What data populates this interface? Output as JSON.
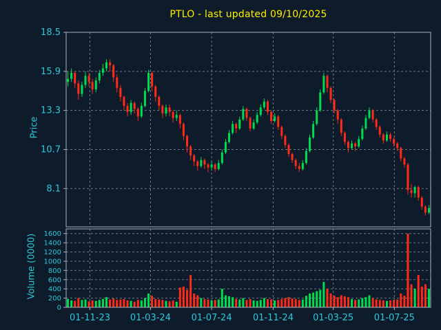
{
  "title": "PTLO - last updated 09/10/2025",
  "ticker": "PTLO",
  "last_updated": "09/10/2025",
  "colors": {
    "background": "#0d1b2b",
    "title_text": "#ffee00",
    "axis_text": "#2ec8d8",
    "grid": "#6d7b8a",
    "border": "#a8b4c0",
    "up": "#00dc50",
    "down": "#ff2a18"
  },
  "chart_data": {
    "type": "candlestick",
    "subchart": "volume-bars",
    "title": "PTLO - last updated 09/10/2025",
    "grid": true,
    "legend": "none",
    "price_axis": {
      "label": "Price",
      "ticks": [
        18.5,
        15.9,
        13.3,
        10.7,
        8.1
      ],
      "tick_labels": [
        "18.5",
        "15.9",
        "13.3",
        "10.7",
        "8.1"
      ],
      "range": [
        5.55,
        18.5
      ]
    },
    "volume_axis": {
      "label": "Volume (0000)",
      "ticks": [
        1600,
        1400,
        1200,
        1000,
        800,
        600,
        400,
        200,
        0
      ],
      "tick_labels": [
        "1600",
        "1400",
        "1200",
        "1000",
        "800",
        "600",
        "400",
        "200",
        "0"
      ],
      "range": [
        0,
        1700
      ]
    },
    "x": {
      "start_date": "2023-09-18",
      "interval_days": 7,
      "tick_labels": [
        "01-11-23",
        "01-03-24",
        "01-07-24",
        "01-11-24",
        "01-03-25",
        "01-07-25"
      ],
      "tick_dates": [
        "2023-11-01",
        "2024-03-01",
        "2024-07-01",
        "2024-11-01",
        "2025-03-01",
        "2025-07-01"
      ]
    },
    "ohlcv_fields": [
      "open",
      "high",
      "low",
      "close",
      "volume_0000"
    ],
    "candles": [
      [
        15.2,
        15.9,
        14.9,
        15.4,
        180
      ],
      [
        15.4,
        16.1,
        15.2,
        15.8,
        150
      ],
      [
        15.8,
        15.9,
        14.8,
        15.1,
        140
      ],
      [
        15.1,
        15.3,
        14.0,
        14.4,
        200
      ],
      [
        14.4,
        15.2,
        14.2,
        15.0,
        160
      ],
      [
        15.0,
        15.9,
        14.8,
        15.6,
        170
      ],
      [
        15.6,
        15.8,
        14.9,
        15.2,
        130
      ],
      [
        15.2,
        15.4,
        14.4,
        14.7,
        150
      ],
      [
        14.7,
        15.5,
        14.5,
        15.3,
        140
      ],
      [
        15.3,
        16.0,
        15.1,
        15.8,
        160
      ],
      [
        15.8,
        16.4,
        15.6,
        16.1,
        180
      ],
      [
        16.1,
        16.7,
        15.9,
        16.5,
        220
      ],
      [
        16.5,
        16.7,
        15.9,
        16.3,
        170
      ],
      [
        16.3,
        16.4,
        15.2,
        15.5,
        190
      ],
      [
        15.5,
        15.7,
        14.5,
        14.8,
        160
      ],
      [
        14.8,
        15.0,
        13.9,
        14.2,
        170
      ],
      [
        14.2,
        14.3,
        13.3,
        13.6,
        180
      ],
      [
        13.6,
        13.8,
        12.9,
        13.2,
        150
      ],
      [
        13.2,
        14.0,
        13.0,
        13.8,
        140
      ],
      [
        13.8,
        13.9,
        13.1,
        13.4,
        120
      ],
      [
        13.4,
        13.5,
        12.6,
        12.9,
        160
      ],
      [
        12.9,
        13.8,
        12.8,
        13.6,
        150
      ],
      [
        13.6,
        14.8,
        13.5,
        14.6,
        200
      ],
      [
        14.6,
        16.0,
        14.5,
        15.8,
        300
      ],
      [
        15.8,
        15.9,
        14.6,
        14.9,
        250
      ],
      [
        14.9,
        15.0,
        13.9,
        14.2,
        180
      ],
      [
        14.2,
        14.3,
        13.3,
        13.6,
        170
      ],
      [
        13.6,
        13.7,
        12.8,
        13.1,
        160
      ],
      [
        13.1,
        13.7,
        12.9,
        13.5,
        140
      ],
      [
        13.5,
        13.7,
        12.9,
        13.2,
        130
      ],
      [
        13.2,
        13.3,
        12.5,
        12.8,
        150
      ],
      [
        12.8,
        13.3,
        12.6,
        13.0,
        120
      ],
      [
        13.0,
        13.1,
        12.1,
        12.4,
        430
      ],
      [
        12.4,
        12.5,
        11.3,
        11.6,
        450
      ],
      [
        11.6,
        11.7,
        10.5,
        10.9,
        380
      ],
      [
        10.9,
        11.0,
        10.0,
        10.3,
        700
      ],
      [
        10.3,
        10.4,
        9.6,
        9.9,
        300
      ],
      [
        9.9,
        10.0,
        9.3,
        9.6,
        260
      ],
      [
        9.6,
        10.2,
        9.5,
        10.0,
        200
      ],
      [
        10.0,
        10.1,
        9.4,
        9.7,
        180
      ],
      [
        9.7,
        9.8,
        9.2,
        9.5,
        170
      ],
      [
        9.5,
        9.9,
        9.3,
        9.7,
        150
      ],
      [
        9.7,
        9.8,
        9.2,
        9.4,
        160
      ],
      [
        9.4,
        10.0,
        9.3,
        9.8,
        170
      ],
      [
        9.8,
        10.7,
        9.7,
        10.5,
        400
      ],
      [
        10.5,
        11.4,
        10.4,
        11.2,
        260
      ],
      [
        11.2,
        12.0,
        11.1,
        11.8,
        240
      ],
      [
        11.8,
        12.6,
        11.7,
        12.4,
        220
      ],
      [
        12.4,
        12.5,
        11.8,
        12.1,
        180
      ],
      [
        12.1,
        12.9,
        12.0,
        12.7,
        170
      ],
      [
        12.7,
        13.6,
        12.6,
        13.4,
        200
      ],
      [
        13.4,
        13.5,
        12.6,
        12.8,
        160
      ],
      [
        12.8,
        12.9,
        11.9,
        12.1,
        180
      ],
      [
        12.1,
        12.7,
        12.0,
        12.5,
        150
      ],
      [
        12.5,
        13.2,
        12.4,
        13.0,
        140
      ],
      [
        13.0,
        13.7,
        12.9,
        13.5,
        160
      ],
      [
        13.5,
        14.1,
        13.4,
        13.9,
        200
      ],
      [
        13.9,
        14.0,
        13.0,
        13.2,
        180
      ],
      [
        13.2,
        13.3,
        12.4,
        12.6,
        170
      ],
      [
        12.6,
        13.1,
        12.5,
        12.9,
        150
      ],
      [
        12.9,
        13.0,
        12.0,
        12.2,
        160
      ],
      [
        12.2,
        12.3,
        11.4,
        11.6,
        180
      ],
      [
        11.6,
        11.7,
        10.8,
        11.0,
        200
      ],
      [
        11.0,
        11.1,
        10.2,
        10.4,
        220
      ],
      [
        10.4,
        10.5,
        9.8,
        10.0,
        190
      ],
      [
        10.0,
        10.1,
        9.4,
        9.6,
        180
      ],
      [
        9.6,
        9.8,
        9.2,
        9.4,
        160
      ],
      [
        9.4,
        10.0,
        9.3,
        9.8,
        170
      ],
      [
        9.8,
        10.8,
        9.7,
        10.6,
        250
      ],
      [
        10.6,
        11.7,
        10.5,
        11.5,
        300
      ],
      [
        11.5,
        12.6,
        11.4,
        12.4,
        320
      ],
      [
        12.4,
        13.5,
        12.3,
        13.3,
        350
      ],
      [
        13.3,
        14.7,
        13.2,
        14.5,
        380
      ],
      [
        14.5,
        15.8,
        14.4,
        15.6,
        550
      ],
      [
        15.6,
        15.7,
        14.5,
        14.8,
        400
      ],
      [
        14.8,
        14.9,
        13.8,
        14.0,
        300
      ],
      [
        14.0,
        14.1,
        13.1,
        13.3,
        250
      ],
      [
        13.3,
        13.4,
        12.4,
        12.7,
        220
      ],
      [
        12.7,
        12.8,
        11.6,
        11.8,
        260
      ],
      [
        11.8,
        11.9,
        11.0,
        11.2,
        240
      ],
      [
        11.2,
        11.3,
        10.5,
        10.8,
        220
      ],
      [
        10.8,
        11.3,
        10.7,
        11.1,
        180
      ],
      [
        11.1,
        11.2,
        10.6,
        10.9,
        160
      ],
      [
        10.9,
        11.6,
        10.8,
        11.4,
        170
      ],
      [
        11.4,
        12.3,
        11.3,
        12.1,
        200
      ],
      [
        12.1,
        13.0,
        12.0,
        12.8,
        220
      ],
      [
        12.8,
        13.5,
        12.7,
        13.3,
        260
      ],
      [
        13.3,
        13.4,
        12.5,
        12.7,
        200
      ],
      [
        12.7,
        12.8,
        12.0,
        12.2,
        170
      ],
      [
        12.2,
        12.3,
        11.5,
        11.7,
        160
      ],
      [
        11.7,
        11.8,
        11.1,
        11.3,
        150
      ],
      [
        11.3,
        11.9,
        11.2,
        11.7,
        140
      ],
      [
        11.7,
        11.8,
        11.2,
        11.4,
        150
      ],
      [
        11.4,
        11.5,
        10.9,
        11.1,
        160
      ],
      [
        11.1,
        11.2,
        10.6,
        10.8,
        170
      ],
      [
        10.8,
        10.9,
        9.9,
        10.1,
        300
      ],
      [
        10.1,
        10.2,
        9.5,
        9.7,
        250
      ],
      [
        9.7,
        9.8,
        7.7,
        8.0,
        1600
      ],
      [
        8.0,
        8.4,
        7.5,
        7.8,
        500
      ],
      [
        7.8,
        8.3,
        7.5,
        8.2,
        400
      ],
      [
        8.2,
        8.3,
        7.3,
        7.5,
        700
      ],
      [
        7.5,
        7.6,
        6.7,
        6.9,
        450
      ],
      [
        6.9,
        7.0,
        6.3,
        6.5,
        500
      ],
      [
        6.5,
        7.0,
        6.4,
        6.8,
        400
      ]
    ]
  }
}
